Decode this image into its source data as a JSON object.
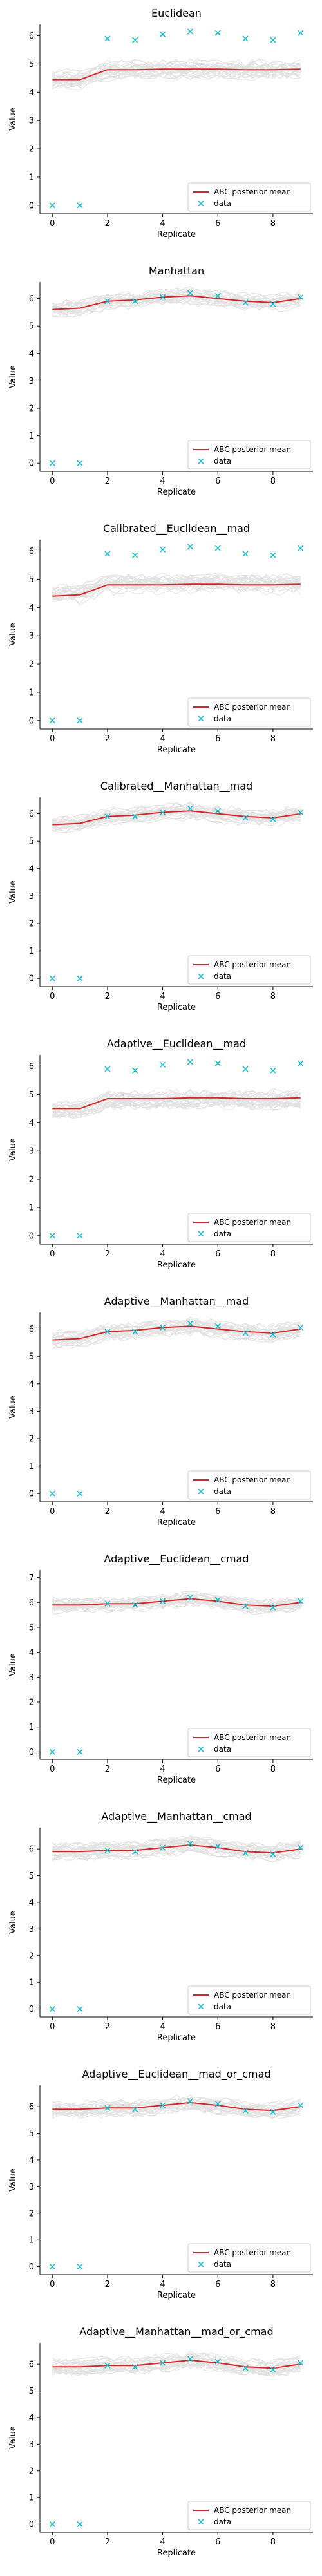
{
  "colors": {
    "mean_line": "#d62728",
    "data_marker": "#17becf",
    "band": "#b3b3b3",
    "band_line": "#9a9a9a"
  },
  "legend": {
    "mean_label": "ABC posterior mean",
    "data_label": "data",
    "placement": "lower-right"
  },
  "chart_data": [
    {
      "type": "line",
      "title": "Euclidean",
      "xlabel": "Replicate",
      "ylabel": "Value",
      "x": [
        0,
        1,
        2,
        3,
        4,
        5,
        6,
        7,
        8,
        9
      ],
      "xticks": [
        0,
        2,
        4,
        6,
        8
      ],
      "ylim": [
        -0.3,
        6.4
      ],
      "yticks": [
        0,
        1,
        2,
        3,
        4,
        5,
        6
      ],
      "data_values": [
        0.0,
        0.0,
        5.9,
        5.85,
        6.05,
        6.15,
        6.1,
        5.9,
        5.85,
        6.1
      ],
      "posterior_mean": [
        4.45,
        4.45,
        4.8,
        4.8,
        4.82,
        4.82,
        4.82,
        4.8,
        4.8,
        4.82
      ],
      "band_halfwidth": 0.35,
      "grid": false
    },
    {
      "type": "line",
      "title": "Manhattan",
      "xlabel": "Replicate",
      "ylabel": "Value",
      "x": [
        0,
        1,
        2,
        3,
        4,
        5,
        6,
        7,
        8,
        9
      ],
      "xticks": [
        0,
        2,
        4,
        6,
        8
      ],
      "ylim": [
        -0.3,
        6.6
      ],
      "yticks": [
        0,
        1,
        2,
        3,
        4,
        5,
        6
      ],
      "data_values": [
        0.0,
        0.0,
        5.9,
        5.9,
        6.05,
        6.2,
        6.1,
        5.85,
        5.8,
        6.05
      ],
      "posterior_mean": [
        5.6,
        5.65,
        5.9,
        5.95,
        6.05,
        6.1,
        6.0,
        5.9,
        5.85,
        6.0
      ],
      "band_halfwidth": 0.3,
      "grid": false
    },
    {
      "type": "line",
      "title": "Calibrated__Euclidean__mad",
      "xlabel": "Replicate",
      "ylabel": "Value",
      "x": [
        0,
        1,
        2,
        3,
        4,
        5,
        6,
        7,
        8,
        9
      ],
      "xticks": [
        0,
        2,
        4,
        6,
        8
      ],
      "ylim": [
        -0.3,
        6.4
      ],
      "yticks": [
        0,
        1,
        2,
        3,
        4,
        5,
        6
      ],
      "data_values": [
        0.0,
        0.0,
        5.9,
        5.85,
        6.05,
        6.15,
        6.1,
        5.9,
        5.85,
        6.1
      ],
      "posterior_mean": [
        4.4,
        4.45,
        4.8,
        4.8,
        4.8,
        4.82,
        4.82,
        4.8,
        4.8,
        4.82
      ],
      "band_halfwidth": 0.35,
      "grid": false
    },
    {
      "type": "line",
      "title": "Calibrated__Manhattan__mad",
      "xlabel": "Replicate",
      "ylabel": "Value",
      "x": [
        0,
        1,
        2,
        3,
        4,
        5,
        6,
        7,
        8,
        9
      ],
      "xticks": [
        0,
        2,
        4,
        6,
        8
      ],
      "ylim": [
        -0.3,
        6.6
      ],
      "yticks": [
        0,
        1,
        2,
        3,
        4,
        5,
        6
      ],
      "data_values": [
        0.0,
        0.0,
        5.9,
        5.9,
        6.05,
        6.2,
        6.1,
        5.85,
        5.8,
        6.05
      ],
      "posterior_mean": [
        5.6,
        5.65,
        5.9,
        5.95,
        6.05,
        6.1,
        6.0,
        5.9,
        5.85,
        6.0
      ],
      "band_halfwidth": 0.3,
      "grid": false
    },
    {
      "type": "line",
      "title": "Adaptive__Euclidean__mad",
      "xlabel": "Replicate",
      "ylabel": "Value",
      "x": [
        0,
        1,
        2,
        3,
        4,
        5,
        6,
        7,
        8,
        9
      ],
      "xticks": [
        0,
        2,
        4,
        6,
        8
      ],
      "ylim": [
        -0.3,
        6.4
      ],
      "yticks": [
        0,
        1,
        2,
        3,
        4,
        5,
        6
      ],
      "data_values": [
        0.0,
        0.0,
        5.9,
        5.85,
        6.05,
        6.15,
        6.1,
        5.9,
        5.85,
        6.1
      ],
      "posterior_mean": [
        4.5,
        4.5,
        4.85,
        4.85,
        4.85,
        4.88,
        4.88,
        4.85,
        4.85,
        4.88
      ],
      "band_halfwidth": 0.35,
      "grid": false
    },
    {
      "type": "line",
      "title": "Adaptive__Manhattan__mad",
      "xlabel": "Replicate",
      "ylabel": "Value",
      "x": [
        0,
        1,
        2,
        3,
        4,
        5,
        6,
        7,
        8,
        9
      ],
      "xticks": [
        0,
        2,
        4,
        6,
        8
      ],
      "ylim": [
        -0.3,
        6.6
      ],
      "yticks": [
        0,
        1,
        2,
        3,
        4,
        5,
        6
      ],
      "data_values": [
        0.0,
        0.0,
        5.9,
        5.9,
        6.05,
        6.2,
        6.1,
        5.85,
        5.8,
        6.05
      ],
      "posterior_mean": [
        5.6,
        5.65,
        5.9,
        5.95,
        6.05,
        6.1,
        6.0,
        5.9,
        5.85,
        6.0
      ],
      "band_halfwidth": 0.3,
      "grid": false
    },
    {
      "type": "line",
      "title": "Adaptive__Euclidean__cmad",
      "xlabel": "Replicate",
      "ylabel": "Value",
      "x": [
        0,
        1,
        2,
        3,
        4,
        5,
        6,
        7,
        8,
        9
      ],
      "xticks": [
        0,
        2,
        4,
        6,
        8
      ],
      "ylim": [
        -0.3,
        7.3
      ],
      "yticks": [
        0,
        1,
        2,
        3,
        4,
        5,
        6,
        7
      ],
      "data_values": [
        0.0,
        0.0,
        5.95,
        5.9,
        6.05,
        6.2,
        6.1,
        5.85,
        5.8,
        6.05
      ],
      "posterior_mean": [
        5.9,
        5.9,
        5.95,
        5.95,
        6.05,
        6.15,
        6.05,
        5.9,
        5.85,
        6.0
      ],
      "band_halfwidth": 0.3,
      "grid": false
    },
    {
      "type": "line",
      "title": "Adaptive__Manhattan__cmad",
      "xlabel": "Replicate",
      "ylabel": "Value",
      "x": [
        0,
        1,
        2,
        3,
        4,
        5,
        6,
        7,
        8,
        9
      ],
      "xticks": [
        0,
        2,
        4,
        6,
        8
      ],
      "ylim": [
        -0.3,
        6.8
      ],
      "yticks": [
        0,
        1,
        2,
        3,
        4,
        5,
        6
      ],
      "data_values": [
        0.0,
        0.0,
        5.95,
        5.9,
        6.05,
        6.2,
        6.1,
        5.85,
        5.8,
        6.05
      ],
      "posterior_mean": [
        5.9,
        5.9,
        5.95,
        5.95,
        6.05,
        6.15,
        6.05,
        5.9,
        5.85,
        6.0
      ],
      "band_halfwidth": 0.3,
      "grid": false
    },
    {
      "type": "line",
      "title": "Adaptive__Euclidean__mad_or_cmad",
      "xlabel": "Replicate",
      "ylabel": "Value",
      "x": [
        0,
        1,
        2,
        3,
        4,
        5,
        6,
        7,
        8,
        9
      ],
      "xticks": [
        0,
        2,
        4,
        6,
        8
      ],
      "ylim": [
        -0.3,
        6.8
      ],
      "yticks": [
        0,
        1,
        2,
        3,
        4,
        5,
        6
      ],
      "data_values": [
        0.0,
        0.0,
        5.95,
        5.9,
        6.05,
        6.2,
        6.1,
        5.85,
        5.8,
        6.05
      ],
      "posterior_mean": [
        5.9,
        5.9,
        5.95,
        5.95,
        6.05,
        6.15,
        6.05,
        5.9,
        5.85,
        6.0
      ],
      "band_halfwidth": 0.3,
      "grid": false
    },
    {
      "type": "line",
      "title": "Adaptive__Manhattan__mad_or_cmad",
      "xlabel": "Replicate",
      "ylabel": "Value",
      "x": [
        0,
        1,
        2,
        3,
        4,
        5,
        6,
        7,
        8,
        9
      ],
      "xticks": [
        0,
        2,
        4,
        6,
        8
      ],
      "ylim": [
        -0.3,
        6.8
      ],
      "yticks": [
        0,
        1,
        2,
        3,
        4,
        5,
        6
      ],
      "data_values": [
        0.0,
        0.0,
        5.95,
        5.9,
        6.05,
        6.2,
        6.1,
        5.85,
        5.8,
        6.05
      ],
      "posterior_mean": [
        5.9,
        5.9,
        5.95,
        5.95,
        6.05,
        6.15,
        6.05,
        5.9,
        5.85,
        6.0
      ],
      "band_halfwidth": 0.3,
      "grid": false
    }
  ]
}
